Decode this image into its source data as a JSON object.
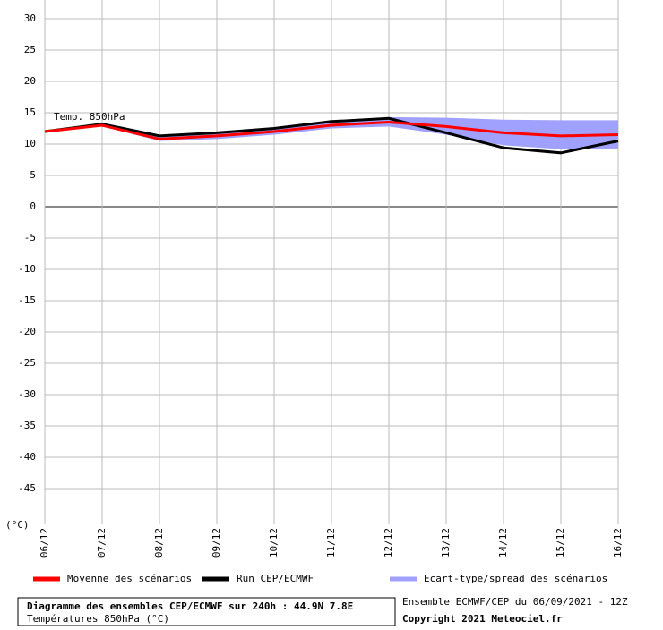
{
  "chart_data": {
    "type": "line",
    "annotation": "Temp. 850hPa",
    "y_unit": "(°C)",
    "categories": [
      "06/12",
      "07/12",
      "08/12",
      "09/12",
      "10/12",
      "11/12",
      "12/12",
      "13/12",
      "14/12",
      "15/12",
      "16/12"
    ],
    "series": [
      {
        "name": "Moyenne des scénarios",
        "color": "#ff0000",
        "values": [
          12,
          13,
          10.8,
          11.3,
          12,
          13,
          13.5,
          12.8,
          11.8,
          11.3,
          11.5
        ]
      },
      {
        "name": "Run CEP/ECMWF",
        "color": "#000000",
        "values": [
          12,
          13.2,
          11.3,
          11.8,
          12.5,
          13.6,
          14.1,
          11.8,
          9.4,
          8.6,
          10.5
        ]
      }
    ],
    "spread": {
      "name": "Ecart-type/spread des scénarios",
      "color": "#a0a0ff",
      "low": [
        11.8,
        12.8,
        10.5,
        10.8,
        11.5,
        12.5,
        12.8,
        11.5,
        9.8,
        9.2,
        9.3
      ],
      "high": [
        12.2,
        13.3,
        11.2,
        11.8,
        12.5,
        13.5,
        14.3,
        14.2,
        13.9,
        13.8,
        13.8
      ]
    },
    "ylim": [
      -50,
      30
    ],
    "yticks": [
      -45,
      -40,
      -35,
      -30,
      -25,
      -20,
      -15,
      -10,
      -5,
      0,
      5,
      10,
      15,
      20,
      25,
      30
    ],
    "grid": true,
    "footer": {
      "title": "Diagramme des ensembles CEP/ECMWF sur 240h : 44.9N 7.8E",
      "subtitle": "Températures 850hPa (°C)",
      "run": "Ensemble ECMWF/CEP du 06/09/2021 - 12Z",
      "copyright": "Copyright 2021 Meteociel.fr"
    }
  }
}
